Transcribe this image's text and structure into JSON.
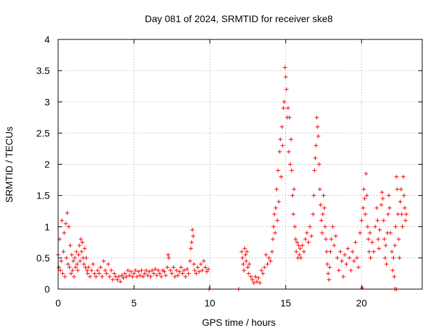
{
  "chart_data": {
    "type": "scatter",
    "title": "Day 081 of 2024, SRMTID for receiver ske8",
    "xlabel": "GPS time / hours",
    "ylabel": "SRMTID / TECUs",
    "xlim": [
      0,
      24
    ],
    "ylim": [
      0,
      4
    ],
    "xticks": [
      0,
      5,
      10,
      15,
      20
    ],
    "xtick_labels": [
      "0",
      "5",
      "10",
      "15",
      "20"
    ],
    "yticks": [
      0,
      0.5,
      1,
      1.5,
      2,
      2.5,
      3,
      3.5,
      4
    ],
    "ytick_labels": [
      "0",
      "0.5",
      "1",
      "1.5",
      "2",
      "2.5",
      "3",
      "3.5",
      "4"
    ],
    "grid": true,
    "marker": "+",
    "series": [
      {
        "name": "SRMTID",
        "color": "#ff0000",
        "points": [
          [
            0.0,
            0.55
          ],
          [
            0.05,
            0.35
          ],
          [
            0.1,
            0.8
          ],
          [
            0.15,
            0.3
          ],
          [
            0.2,
            0.45
          ],
          [
            0.25,
            1.1
          ],
          [
            0.3,
            0.25
          ],
          [
            0.35,
            0.6
          ],
          [
            0.4,
            0.9
          ],
          [
            0.45,
            0.2
          ],
          [
            0.5,
            1.05
          ],
          [
            0.55,
            0.5
          ],
          [
            0.6,
            1.22
          ],
          [
            0.65,
            0.4
          ],
          [
            0.7,
            1.0
          ],
          [
            0.75,
            0.35
          ],
          [
            0.8,
            0.7
          ],
          [
            0.85,
            0.25
          ],
          [
            0.9,
            0.55
          ],
          [
            0.95,
            0.3
          ],
          [
            1.0,
            0.45
          ],
          [
            1.05,
            0.2
          ],
          [
            1.1,
            0.5
          ],
          [
            1.15,
            0.35
          ],
          [
            1.2,
            0.6
          ],
          [
            1.25,
            0.4
          ],
          [
            1.3,
            0.3
          ],
          [
            1.35,
            0.55
          ],
          [
            1.4,
            0.7
          ],
          [
            1.45,
            0.45
          ],
          [
            1.5,
            0.8
          ],
          [
            1.55,
            0.6
          ],
          [
            1.6,
            0.75
          ],
          [
            1.65,
            0.5
          ],
          [
            1.7,
            0.4
          ],
          [
            1.75,
            0.65
          ],
          [
            1.8,
            0.35
          ],
          [
            1.85,
            0.5
          ],
          [
            1.9,
            0.3
          ],
          [
            1.95,
            0.25
          ],
          [
            2.0,
            0.35
          ],
          [
            2.1,
            0.2
          ],
          [
            2.2,
            0.3
          ],
          [
            2.3,
            0.4
          ],
          [
            2.4,
            0.25
          ],
          [
            2.5,
            0.2
          ],
          [
            2.6,
            0.3
          ],
          [
            2.7,
            0.25
          ],
          [
            2.8,
            0.35
          ],
          [
            2.9,
            0.2
          ],
          [
            3.0,
            0.45
          ],
          [
            3.1,
            0.3
          ],
          [
            3.2,
            0.25
          ],
          [
            3.3,
            0.4
          ],
          [
            3.4,
            0.2
          ],
          [
            3.5,
            0.3
          ],
          [
            3.6,
            0.15
          ],
          [
            3.7,
            0.25
          ],
          [
            3.8,
            0.2
          ],
          [
            3.9,
            0.15
          ],
          [
            4.0,
            0.2
          ],
          [
            4.1,
            0.12
          ],
          [
            4.2,
            0.22
          ],
          [
            4.3,
            0.18
          ],
          [
            4.4,
            0.25
          ],
          [
            4.5,
            0.2
          ],
          [
            4.6,
            0.3
          ],
          [
            4.7,
            0.22
          ],
          [
            4.8,
            0.28
          ],
          [
            4.9,
            0.2
          ],
          [
            5.0,
            0.25
          ],
          [
            5.1,
            0.3
          ],
          [
            5.2,
            0.2
          ],
          [
            5.3,
            0.28
          ],
          [
            5.4,
            0.22
          ],
          [
            5.5,
            0.3
          ],
          [
            5.6,
            0.2
          ],
          [
            5.7,
            0.25
          ],
          [
            5.8,
            0.3
          ],
          [
            5.9,
            0.22
          ],
          [
            6.0,
            0.28
          ],
          [
            6.1,
            0.2
          ],
          [
            6.2,
            0.3
          ],
          [
            6.3,
            0.25
          ],
          [
            6.4,
            0.32
          ],
          [
            6.5,
            0.22
          ],
          [
            6.6,
            0.3
          ],
          [
            6.7,
            0.25
          ],
          [
            6.8,
            0.2
          ],
          [
            6.9,
            0.3
          ],
          [
            7.0,
            0.28
          ],
          [
            7.1,
            0.22
          ],
          [
            7.2,
            0.35
          ],
          [
            7.25,
            0.55
          ],
          [
            7.3,
            0.5
          ],
          [
            7.4,
            0.3
          ],
          [
            7.5,
            0.25
          ],
          [
            7.6,
            0.35
          ],
          [
            7.7,
            0.2
          ],
          [
            7.8,
            0.3
          ],
          [
            7.9,
            0.22
          ],
          [
            8.0,
            0.28
          ],
          [
            8.1,
            0.35
          ],
          [
            8.2,
            0.25
          ],
          [
            8.3,
            0.3
          ],
          [
            8.4,
            0.2
          ],
          [
            8.5,
            0.32
          ],
          [
            8.6,
            0.25
          ],
          [
            8.7,
            0.45
          ],
          [
            8.75,
            0.65
          ],
          [
            8.8,
            0.75
          ],
          [
            8.85,
            0.95
          ],
          [
            8.9,
            0.85
          ],
          [
            8.95,
            0.4
          ],
          [
            9.0,
            0.3
          ],
          [
            9.1,
            0.25
          ],
          [
            9.2,
            0.35
          ],
          [
            9.3,
            0.28
          ],
          [
            9.4,
            0.4
          ],
          [
            9.5,
            0.3
          ],
          [
            9.6,
            0.45
          ],
          [
            9.7,
            0.35
          ],
          [
            9.8,
            0.28
          ],
          [
            9.9,
            0.32
          ],
          [
            9.95,
            0.0
          ],
          [
            11.9,
            0.0
          ],
          [
            12.1,
            0.6
          ],
          [
            12.15,
            0.5
          ],
          [
            12.2,
            0.4
          ],
          [
            12.25,
            0.3
          ],
          [
            12.3,
            0.65
          ],
          [
            12.35,
            0.55
          ],
          [
            12.4,
            0.45
          ],
          [
            12.45,
            0.6
          ],
          [
            12.5,
            0.35
          ],
          [
            12.55,
            0.25
          ],
          [
            12.6,
            0.4
          ],
          [
            12.7,
            0.2
          ],
          [
            12.8,
            0.15
          ],
          [
            12.9,
            0.1
          ],
          [
            13.0,
            0.2
          ],
          [
            13.1,
            0.12
          ],
          [
            13.2,
            0.18
          ],
          [
            13.3,
            0.1
          ],
          [
            13.4,
            0.3
          ],
          [
            13.5,
            0.25
          ],
          [
            13.6,
            0.35
          ],
          [
            13.7,
            0.55
          ],
          [
            13.8,
            0.4
          ],
          [
            13.9,
            0.5
          ],
          [
            14.0,
            0.45
          ],
          [
            14.1,
            0.6
          ],
          [
            14.15,
            0.8
          ],
          [
            14.2,
            1.0
          ],
          [
            14.25,
            1.2
          ],
          [
            14.3,
            0.9
          ],
          [
            14.35,
            1.3
          ],
          [
            14.4,
            1.6
          ],
          [
            14.45,
            1.1
          ],
          [
            14.5,
            1.9
          ],
          [
            14.55,
            1.4
          ],
          [
            14.6,
            2.2
          ],
          [
            14.65,
            2.4
          ],
          [
            14.7,
            1.8
          ],
          [
            14.75,
            2.6
          ],
          [
            14.8,
            2.3
          ],
          [
            14.85,
            2.9
          ],
          [
            14.9,
            3.0
          ],
          [
            14.95,
            3.55
          ],
          [
            15.0,
            3.4
          ],
          [
            15.05,
            3.2
          ],
          [
            15.1,
            2.75
          ],
          [
            15.15,
            2.9
          ],
          [
            15.2,
            2.2
          ],
          [
            15.25,
            2.75
          ],
          [
            15.3,
            2.0
          ],
          [
            15.35,
            2.4
          ],
          [
            15.4,
            1.9
          ],
          [
            15.45,
            1.5
          ],
          [
            15.5,
            1.2
          ],
          [
            15.55,
            1.6
          ],
          [
            15.6,
            1.0
          ],
          [
            15.65,
            0.8
          ],
          [
            15.7,
            0.6
          ],
          [
            15.75,
            0.75
          ],
          [
            15.8,
            0.5
          ],
          [
            15.85,
            0.7
          ],
          [
            15.9,
            0.55
          ],
          [
            15.95,
            0.65
          ],
          [
            16.0,
            0.5
          ],
          [
            16.1,
            0.7
          ],
          [
            16.2,
            0.6
          ],
          [
            16.3,
            0.8
          ],
          [
            16.4,
            0.9
          ],
          [
            16.5,
            0.75
          ],
          [
            16.6,
            1.0
          ],
          [
            16.7,
            0.85
          ],
          [
            16.8,
            1.2
          ],
          [
            16.85,
            1.5
          ],
          [
            16.9,
            1.9
          ],
          [
            16.95,
            2.1
          ],
          [
            17.0,
            2.3
          ],
          [
            17.05,
            2.75
          ],
          [
            17.1,
            2.6
          ],
          [
            17.15,
            2.45
          ],
          [
            17.2,
            2.0
          ],
          [
            17.25,
            1.6
          ],
          [
            17.3,
            1.35
          ],
          [
            17.35,
            1.1
          ],
          [
            17.4,
            0.9
          ],
          [
            17.45,
            1.2
          ],
          [
            17.5,
            1.5
          ],
          [
            17.55,
            1.3
          ],
          [
            17.6,
            1.0
          ],
          [
            17.65,
            0.8
          ],
          [
            17.7,
            0.6
          ],
          [
            17.75,
            0.4
          ],
          [
            17.8,
            0.25
          ],
          [
            17.85,
            0.15
          ],
          [
            17.9,
            0.35
          ],
          [
            17.95,
            0.6
          ],
          [
            18.0,
            0.8
          ],
          [
            18.1,
            1.0
          ],
          [
            18.2,
            0.7
          ],
          [
            18.3,
            0.85
          ],
          [
            18.4,
            0.5
          ],
          [
            18.5,
            0.3
          ],
          [
            18.6,
            0.6
          ],
          [
            18.7,
            0.45
          ],
          [
            18.8,
            0.2
          ],
          [
            18.9,
            0.55
          ],
          [
            19.0,
            0.4
          ],
          [
            19.1,
            0.65
          ],
          [
            19.2,
            0.5
          ],
          [
            19.3,
            0.3
          ],
          [
            19.4,
            0.6
          ],
          [
            19.5,
            0.45
          ],
          [
            19.6,
            0.75
          ],
          [
            19.7,
            0.5
          ],
          [
            19.8,
            0.35
          ],
          [
            19.9,
            0.9
          ],
          [
            20.0,
            1.1
          ],
          [
            20.05,
            0.02
          ],
          [
            20.1,
            1.3
          ],
          [
            20.15,
            1.6
          ],
          [
            20.2,
            1.45
          ],
          [
            20.25,
            1.2
          ],
          [
            20.3,
            1.85
          ],
          [
            20.35,
            1.5
          ],
          [
            20.4,
            1.0
          ],
          [
            20.45,
            0.8
          ],
          [
            20.5,
            0.6
          ],
          [
            20.55,
            0.9
          ],
          [
            20.6,
            0.5
          ],
          [
            20.7,
            0.75
          ],
          [
            20.8,
            0.6
          ],
          [
            20.9,
            1.0
          ],
          [
            21.0,
            1.3
          ],
          [
            21.05,
            1.1
          ],
          [
            21.1,
            0.8
          ],
          [
            21.15,
            0.65
          ],
          [
            21.2,
            0.95
          ],
          [
            21.3,
            1.35
          ],
          [
            21.35,
            1.55
          ],
          [
            21.4,
            1.45
          ],
          [
            21.45,
            1.1
          ],
          [
            21.5,
            0.8
          ],
          [
            21.55,
            0.5
          ],
          [
            21.6,
            0.7
          ],
          [
            21.65,
            0.4
          ],
          [
            21.7,
            0.9
          ],
          [
            21.75,
            1.2
          ],
          [
            21.8,
            1.5
          ],
          [
            21.85,
            1.3
          ],
          [
            21.9,
            0.9
          ],
          [
            22.0,
            0.6
          ],
          [
            22.05,
            0.3
          ],
          [
            22.1,
            0.5
          ],
          [
            22.15,
            0.2
          ],
          [
            22.2,
            0.7
          ],
          [
            22.25,
            1.0
          ],
          [
            22.3,
            1.8
          ],
          [
            22.35,
            1.6
          ],
          [
            22.4,
            1.2
          ],
          [
            22.45,
            0.8
          ],
          [
            22.5,
            0.5
          ],
          [
            22.55,
            1.4
          ],
          [
            22.6,
            1.6
          ],
          [
            22.65,
            1.2
          ],
          [
            22.7,
            1.0
          ],
          [
            22.75,
            1.8
          ],
          [
            22.8,
            1.5
          ],
          [
            22.85,
            1.3
          ],
          [
            22.9,
            1.1
          ],
          [
            22.95,
            1.2
          ],
          [
            22.2,
            0.0
          ],
          [
            22.3,
            0.0
          ]
        ]
      }
    ]
  }
}
